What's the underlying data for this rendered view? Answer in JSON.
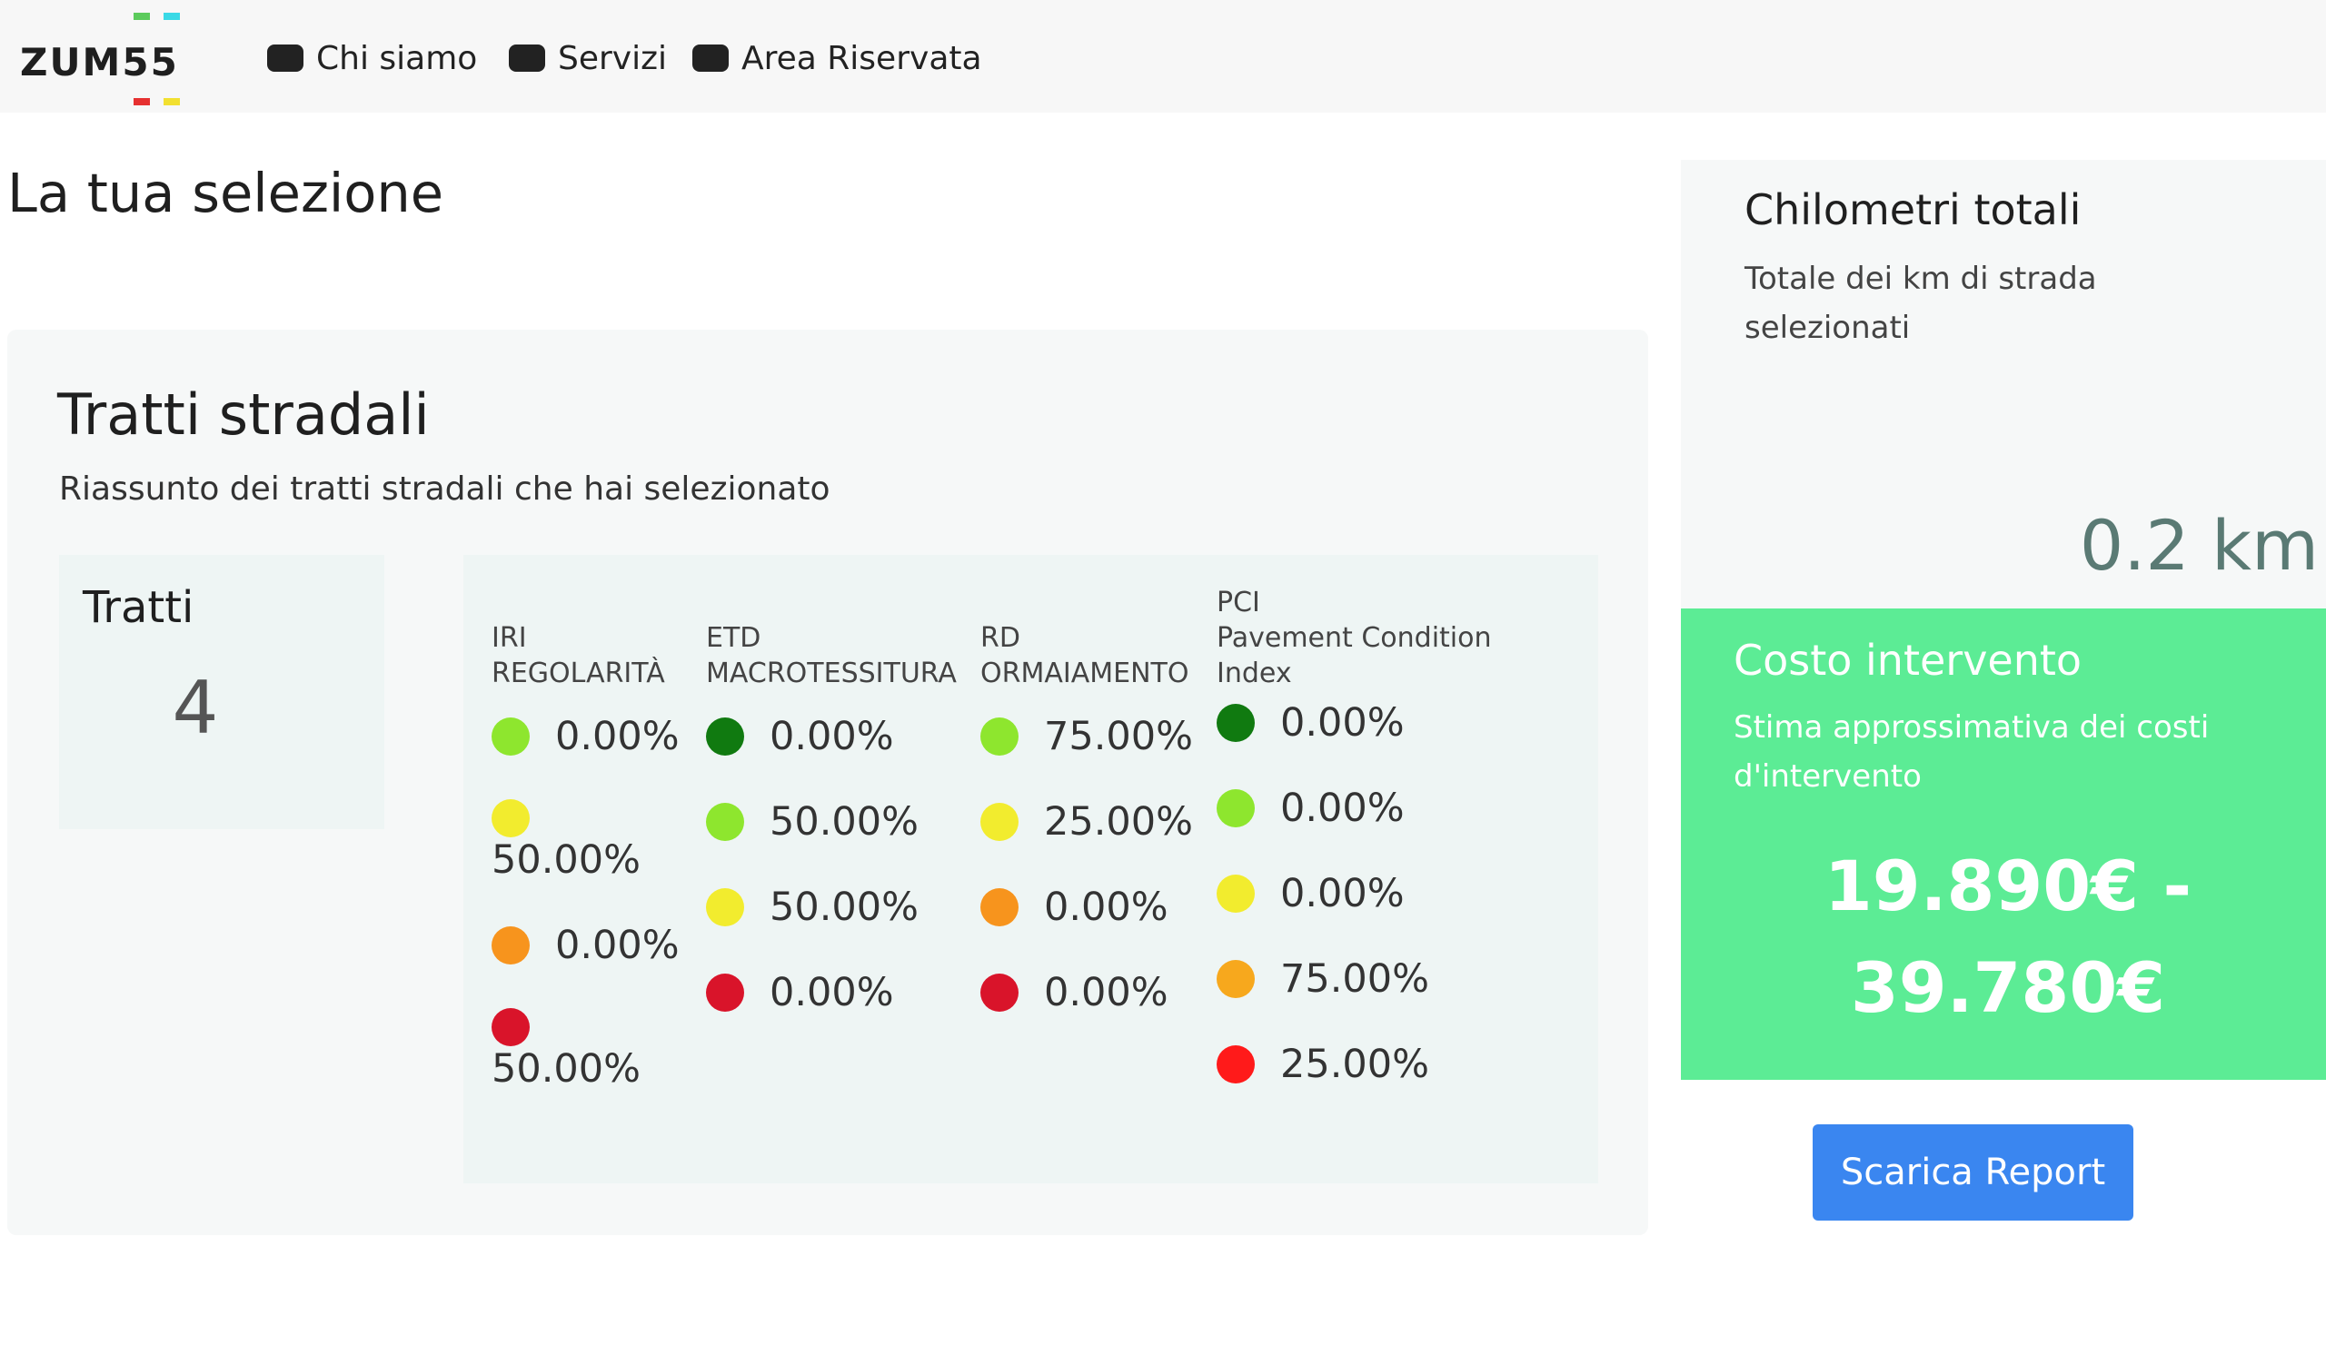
{
  "nav": {
    "logo": [
      "ZUM",
      "55"
    ],
    "items": [
      "Chi siamo",
      "Servizi",
      "Area Riservata"
    ]
  },
  "page_title": "La tua selezione",
  "card": {
    "title": "Tratti stradali",
    "subtitle": "Riassunto dei tratti stradali che hai selezionato",
    "tratti": {
      "label": "Tratti",
      "value": "4"
    },
    "columns": [
      {
        "header": [
          "IRI",
          "REGOLARITÀ"
        ],
        "items": [
          {
            "color": "#8ee62e",
            "text": "0.00%"
          },
          {
            "color": "#f2ec2e",
            "text": "50.00%"
          },
          {
            "color": "#f7941d",
            "text": "0.00%"
          },
          {
            "color": "#d9142a",
            "text": "50.00%"
          }
        ]
      },
      {
        "header": [
          "ETD",
          "MACROTESSITURA"
        ],
        "items": [
          {
            "color": "#107a10",
            "text": "0.00%"
          },
          {
            "color": "#8ee62e",
            "text": "50.00%"
          },
          {
            "color": "#f2ec2e",
            "text": "50.00%"
          },
          {
            "color": "#d9142a",
            "text": "0.00%"
          }
        ]
      },
      {
        "header": [
          "RD",
          "ORMAIAMENTO"
        ],
        "items": [
          {
            "color": "#8ee62e",
            "text": "75.00%"
          },
          {
            "color": "#f2ec2e",
            "text": "25.00%"
          },
          {
            "color": "#f7941d",
            "text": "0.00%"
          },
          {
            "color": "#d9142a",
            "text": "0.00%"
          }
        ]
      },
      {
        "header": [
          "PCI",
          "Pavement Condition",
          "Index"
        ],
        "items": [
          {
            "color": "#107a10",
            "text": "0.00%"
          },
          {
            "color": "#8ee62e",
            "text": "0.00%"
          },
          {
            "color": "#f2ec2e",
            "text": "0.00%"
          },
          {
            "color": "#f7a81d",
            "text": "75.00%"
          },
          {
            "color": "#ff1a1a",
            "text": "25.00%"
          }
        ]
      }
    ]
  },
  "km": {
    "title": "Chilometri totali",
    "subtitle": "Totale dei km di strada selezionati",
    "value": "0.2 km"
  },
  "cost": {
    "title": "Costo intervento",
    "subtitle": "Stima approssimativa dei costi d'intervento",
    "value": "19.890€ - 39.780€"
  },
  "button": "Scarica Report"
}
